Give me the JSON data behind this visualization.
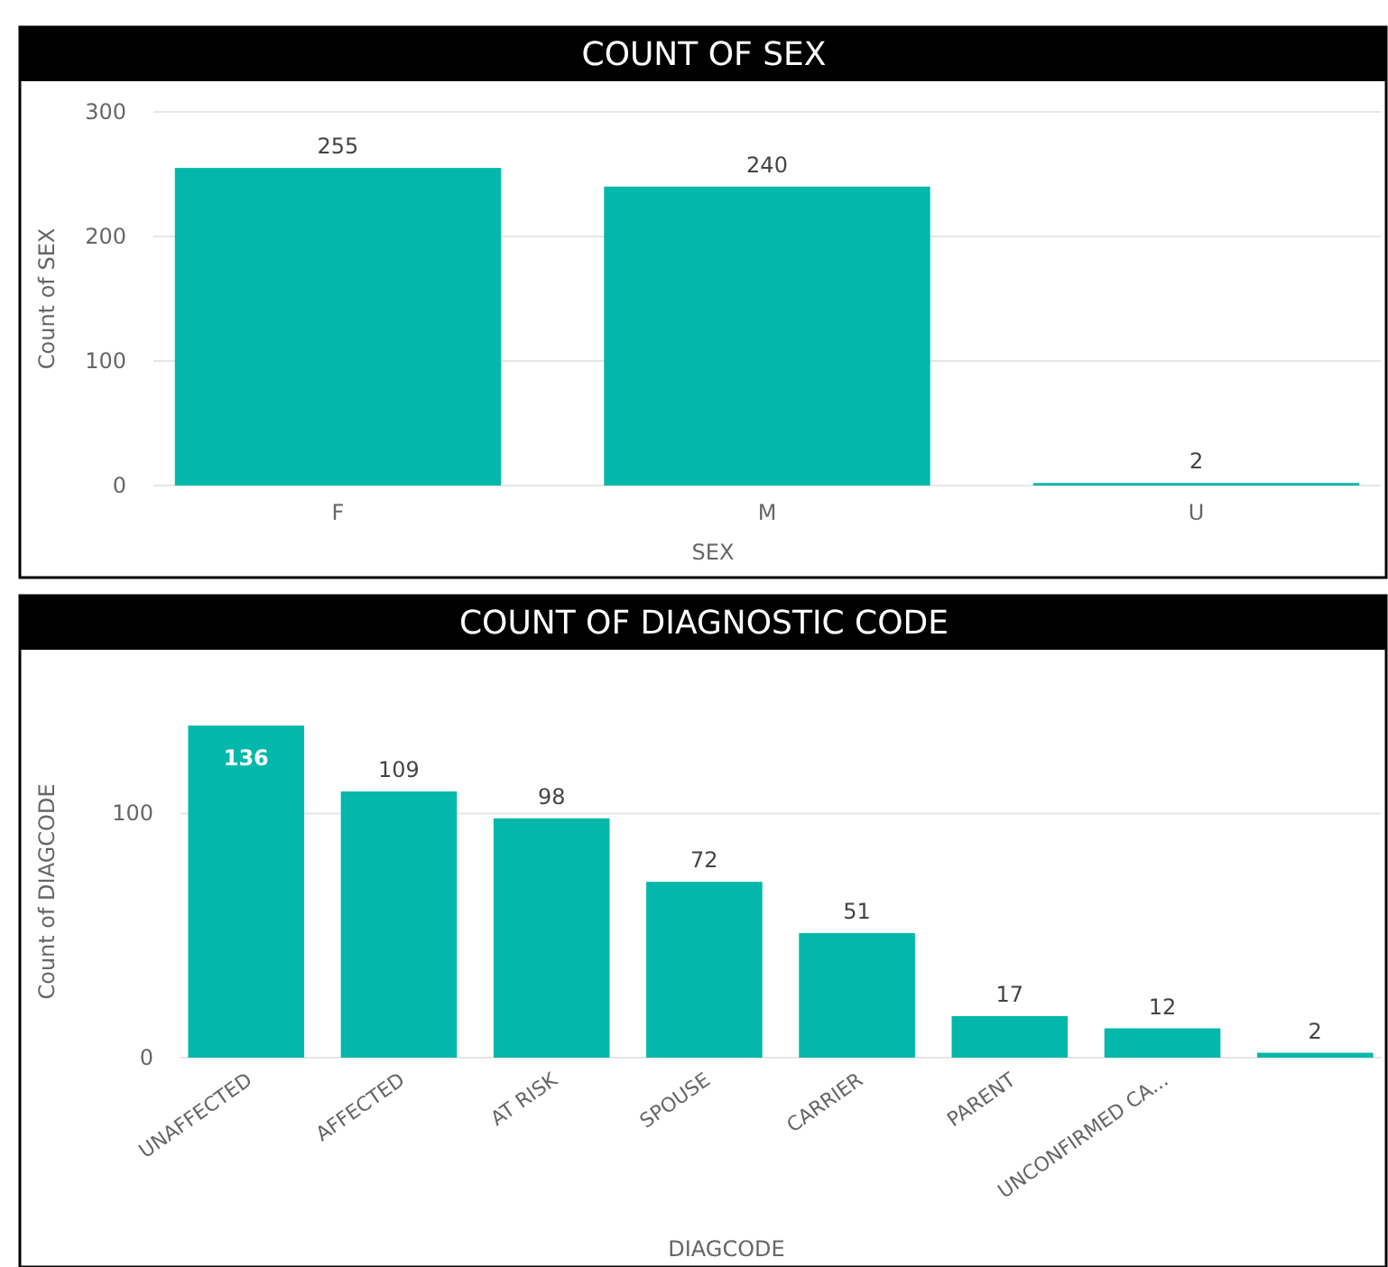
{
  "chart_data": [
    {
      "type": "bar",
      "title": "COUNT OF SEX",
      "xlabel": "SEX",
      "ylabel": "Count of SEX",
      "categories": [
        "F",
        "M",
        "U"
      ],
      "values": [
        255,
        240,
        2
      ],
      "color": "#01b8aa",
      "ylim": [
        0,
        300
      ],
      "yticks": [
        0,
        100,
        200,
        300
      ],
      "grid": "y",
      "data_labels": true
    },
    {
      "type": "bar",
      "title": "COUNT OF DIAGNOSTIC CODE",
      "xlabel": "DIAGCODE",
      "ylabel": "Count of DIAGCODE",
      "categories": [
        "UNAFFECTED",
        "AFFECTED",
        "AT RISK",
        "SPOUSE",
        "CARRIER",
        "PARENT",
        "UNCONFIRMED CA...",
        null
      ],
      "values": [
        136,
        109,
        98,
        72,
        51,
        17,
        12,
        2
      ],
      "color": "#01b8aa",
      "ylim": [
        0,
        136
      ],
      "yticks": [
        0,
        100
      ],
      "grid": "y",
      "data_labels": true
    }
  ]
}
